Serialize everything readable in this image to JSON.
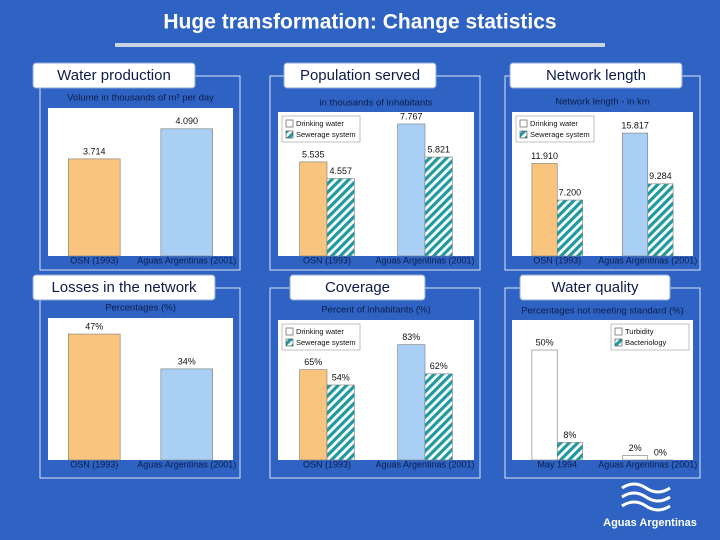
{
  "title": "Huge transformation: Change statistics",
  "logo_text": "Aguas Argentinas",
  "chart_data": [
    {
      "type": "bar",
      "title": "Water production",
      "subtitle": "Volume in thousands of m³ per day",
      "categories": [
        "OSN (1993)",
        "Aguas Argentinas (2001)"
      ],
      "series": [
        {
          "colors": [
            "#f8c47e",
            "#a9cff4"
          ],
          "values": [
            3714,
            4090
          ],
          "value_labels": [
            "3.714",
            "4.090"
          ]
        }
      ],
      "ylim": [
        2500,
        4250
      ]
    },
    {
      "type": "bar",
      "title": "Population served",
      "subtitle": "in thousands of inhabitants",
      "categories": [
        "OSN (1993)",
        "Aguas Argentinas (2001)"
      ],
      "legend": "top-left",
      "series": [
        {
          "name": "Drinking water",
          "colors": [
            "#f8c47e",
            "#a9cff4"
          ],
          "values": [
            5535,
            7767
          ],
          "value_labels": [
            "5.535",
            "7.767"
          ]
        },
        {
          "name": "Sewerage system",
          "color": "#1f9aa0",
          "pattern": "hatch",
          "values": [
            4557,
            5821
          ],
          "value_labels": [
            "4.557",
            "5.821"
          ]
        }
      ],
      "ylim": [
        0,
        8000
      ]
    },
    {
      "type": "bar",
      "title": "Network length",
      "subtitle": "Network length - in km",
      "categories": [
        "OSN (1993)",
        "Aguas Argentinas (2001)"
      ],
      "legend": "top-left",
      "series": [
        {
          "name": "Drinking water",
          "colors": [
            "#f8c47e",
            "#a9cff4"
          ],
          "values": [
            11910,
            15817
          ],
          "value_labels": [
            "11.910",
            "15.817"
          ]
        },
        {
          "name": "Sewerage system",
          "color": "#1f9aa0",
          "pattern": "hatch",
          "values": [
            7200,
            9284
          ],
          "value_labels": [
            "7.200",
            "9.284"
          ]
        }
      ],
      "ylim": [
        0,
        17500
      ]
    },
    {
      "type": "bar",
      "title": "Losses in the network",
      "subtitle": "Percentages (%)",
      "categories": [
        "OSN (1993)",
        "Aguas Argentinas (2001)"
      ],
      "series": [
        {
          "colors": [
            "#f8c47e",
            "#a9cff4"
          ],
          "values": [
            47,
            34
          ],
          "value_labels": [
            "47%",
            "34%"
          ]
        }
      ],
      "ylim": [
        0,
        50
      ]
    },
    {
      "type": "bar",
      "title": "Coverage",
      "subtitle": "Percent of inhabitants (%)",
      "categories": [
        "OSN (1993)",
        "Aguas Argentinas (2001)"
      ],
      "legend": "top-left",
      "series": [
        {
          "name": "Drinking water",
          "colors": [
            "#f8c47e",
            "#a9cff4"
          ],
          "values": [
            65,
            83
          ],
          "value_labels": [
            "65%",
            "83%"
          ]
        },
        {
          "name": "Sewerage system",
          "color": "#1f9aa0",
          "pattern": "hatch",
          "values": [
            54,
            62
          ],
          "value_labels": [
            "54%",
            "62%"
          ]
        }
      ],
      "ylim": [
        0,
        95
      ]
    },
    {
      "type": "bar",
      "title": "Water quality",
      "subtitle": "Percentages not meeting standard (%)",
      "categories": [
        "May 1994",
        "Aguas Argentinas (2001)"
      ],
      "legend": "top-right",
      "series": [
        {
          "name": "Turbidity",
          "color": "#ffffff",
          "values": [
            50,
            2
          ],
          "value_labels": [
            "50%",
            "2%"
          ]
        },
        {
          "name": "Bacteriology",
          "color": "#1f9aa0",
          "pattern": "hatch",
          "values": [
            8,
            0
          ],
          "value_labels": [
            "8%",
            "0%"
          ]
        }
      ],
      "ylim": [
        0,
        60
      ]
    }
  ]
}
